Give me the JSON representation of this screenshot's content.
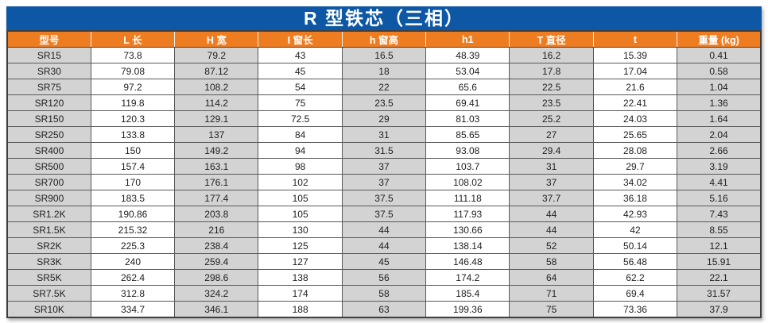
{
  "title": "R 型铁芯（三相）",
  "table": {
    "columns": [
      "型号",
      "L 长",
      "H 宽",
      "I 窗长",
      "h 窗高",
      "h1",
      "T 直径",
      "t",
      "重量 (kg)"
    ],
    "rows": [
      [
        "SR15",
        "73.8",
        "79.2",
        "43",
        "16.5",
        "48.39",
        "16.2",
        "15.39",
        "0.41"
      ],
      [
        "SR30",
        "79.08",
        "87.12",
        "45",
        "18",
        "53.04",
        "17.8",
        "17.04",
        "0.58"
      ],
      [
        "SR75",
        "97.2",
        "108.2",
        "54",
        "22",
        "65.6",
        "22.5",
        "21.6",
        "1.04"
      ],
      [
        "SR120",
        "119.8",
        "114.2",
        "75",
        "23.5",
        "69.41",
        "23.5",
        "22.41",
        "1.36"
      ],
      [
        "SR150",
        "120.3",
        "129.1",
        "72.5",
        "29",
        "81.03",
        "25.2",
        "24.03",
        "1.64"
      ],
      [
        "SR250",
        "133.8",
        "137",
        "84",
        "31",
        "85.65",
        "27",
        "25.65",
        "2.04"
      ],
      [
        "SR400",
        "150",
        "149.2",
        "94",
        "31.5",
        "93.08",
        "29.4",
        "28.08",
        "2.66"
      ],
      [
        "SR500",
        "157.4",
        "163.1",
        "98",
        "37",
        "103.7",
        "31",
        "29.7",
        "3.19"
      ],
      [
        "SR700",
        "170",
        "176.1",
        "102",
        "37",
        "108.02",
        "37",
        "34.02",
        "4.41"
      ],
      [
        "SR900",
        "183.5",
        "177.4",
        "105",
        "37.5",
        "111.18",
        "37.7",
        "36.18",
        "5.16"
      ],
      [
        "SR1.2K",
        "190.86",
        "203.8",
        "105",
        "37.5",
        "117.93",
        "44",
        "42.93",
        "7.43"
      ],
      [
        "SR1.5K",
        "215.32",
        "216",
        "130",
        "44",
        "130.66",
        "44",
        "42",
        "8.55"
      ],
      [
        "SR2K",
        "225.3",
        "238.4",
        "125",
        "44",
        "138.14",
        "52",
        "50.14",
        "12.1"
      ],
      [
        "SR3K",
        "240",
        "259.4",
        "127",
        "45",
        "146.48",
        "58",
        "56.48",
        "15.91"
      ],
      [
        "SR5K",
        "262.4",
        "298.6",
        "138",
        "56",
        "174.2",
        "64",
        "62.2",
        "22.1"
      ],
      [
        "SR7.5K",
        "312.8",
        "324.2",
        "174",
        "58",
        "185.4",
        "71",
        "69.4",
        "31.57"
      ],
      [
        "SR10K",
        "334.7",
        "346.1",
        "188",
        "63",
        "199.36",
        "75",
        "73.36",
        "37.9"
      ]
    ]
  },
  "colors": {
    "title_bg": "#0e57a5",
    "title_text": "#ffffff",
    "header_bg": "#ee7d22",
    "header_text": "#ffffff",
    "shaded_cell_bg": "#d3d3d3",
    "plain_cell_bg": "#ffffff",
    "cell_border": "#595959",
    "cell_text": "#1f1f1f"
  }
}
